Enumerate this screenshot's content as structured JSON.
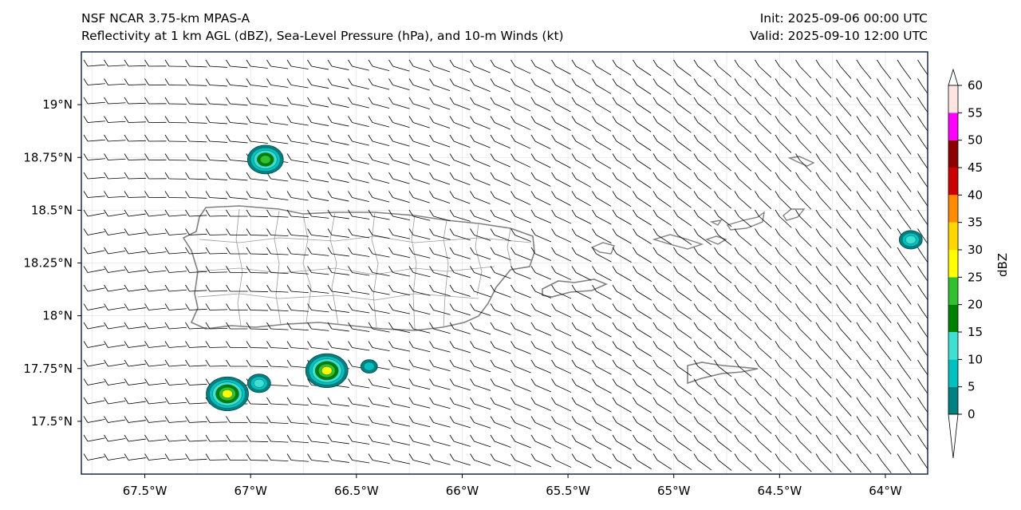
{
  "header": {
    "model": "NSF NCAR 3.75-km MPAS-A",
    "fields": "Reflectivity at 1 km AGL (dBZ), Sea-Level Pressure (hPa), and 10-m Winds (kt)",
    "init": "Init: 2025-09-06 00:00 UTC",
    "valid": "Valid: 2025-09-10 12:00 UTC"
  },
  "map": {
    "lon_range": [
      -67.8,
      -63.8
    ],
    "lat_range": [
      17.25,
      19.25
    ],
    "lon_ticks": [
      {
        "value": -67.5,
        "label": "67.5°W"
      },
      {
        "value": -67.0,
        "label": "67°W"
      },
      {
        "value": -66.5,
        "label": "66.5°W"
      },
      {
        "value": -66.0,
        "label": "66°W"
      },
      {
        "value": -65.5,
        "label": "65.5°W"
      },
      {
        "value": -65.0,
        "label": "65°W"
      },
      {
        "value": -64.5,
        "label": "64.5°W"
      },
      {
        "value": -64.0,
        "label": "64°W"
      }
    ],
    "lat_ticks": [
      {
        "value": 19.0,
        "label": "19°N"
      },
      {
        "value": 18.75,
        "label": "18.75°N"
      },
      {
        "value": 18.5,
        "label": "18.5°N"
      },
      {
        "value": 18.25,
        "label": "18.25°N"
      },
      {
        "value": 18.0,
        "label": "18°N"
      },
      {
        "value": 17.75,
        "label": "17.75°N"
      },
      {
        "value": 17.5,
        "label": "17.5°N"
      }
    ],
    "land_outline_color": "#808080",
    "echoes": [
      {
        "lon": -66.93,
        "lat": 18.74,
        "max_dbz": 22
      },
      {
        "lon": -66.64,
        "lat": 17.74,
        "max_dbz": 27
      },
      {
        "lon": -66.96,
        "lat": 17.68,
        "max_dbz": 10
      },
      {
        "lon": -67.11,
        "lat": 17.63,
        "max_dbz": 25
      },
      {
        "lon": -66.44,
        "lat": 17.76,
        "max_dbz": 8
      },
      {
        "lon": -63.88,
        "lat": 18.36,
        "max_dbz": 10
      }
    ]
  },
  "colorbar": {
    "label": "dBZ",
    "ticks": [
      "0",
      "5",
      "10",
      "15",
      "20",
      "25",
      "30",
      "35",
      "40",
      "45",
      "50",
      "55",
      "60"
    ],
    "colors": [
      "#008080",
      "#00c0c0",
      "#40e0d0",
      "#008000",
      "#30c030",
      "#ffff00",
      "#ffd700",
      "#ff8c00",
      "#cc0000",
      "#8b0000",
      "#ff00ff",
      "#ffe4e1"
    ]
  }
}
